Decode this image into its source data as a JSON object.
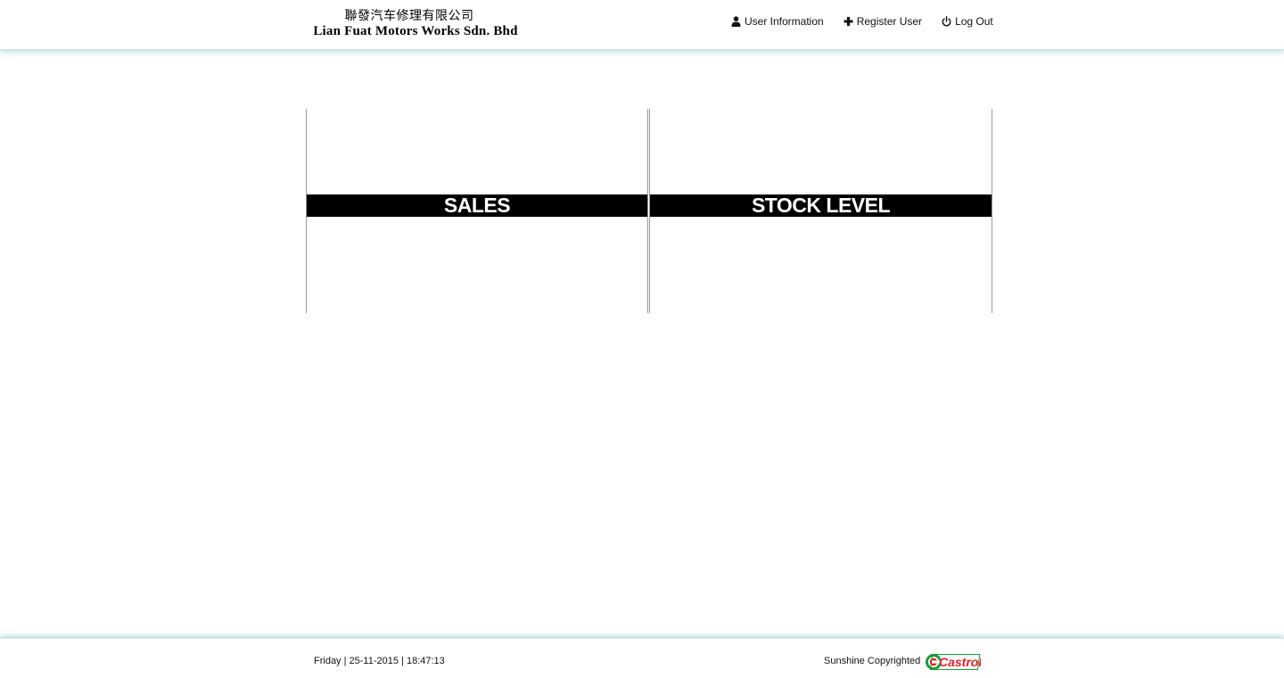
{
  "header": {
    "brand_cn": "聯發汽车修理有限公司",
    "brand_en": "Lian Fuat Motors Works Sdn. Bhd",
    "nav": [
      {
        "label": "User Information",
        "icon": "user-icon"
      },
      {
        "label": "Register User",
        "icon": "plus-icon"
      },
      {
        "label": "Log Out",
        "icon": "power-icon"
      }
    ]
  },
  "tiles": [
    {
      "label": "SALES"
    },
    {
      "label": "STOCK LEVEL"
    }
  ],
  "footer": {
    "datetime": "Friday | 25-11-2015 | 18:47:13",
    "copyright": "Sunshine Copyrighted",
    "logo_text": "Castrol",
    "logo_icon": "castrol-logo",
    "logo_green": "#1a9a3a",
    "logo_red": "#e0202a"
  },
  "colors": {
    "tile_bar": "#000000",
    "tile_text": "#ffffff",
    "header_shadow": "#78bec3"
  }
}
